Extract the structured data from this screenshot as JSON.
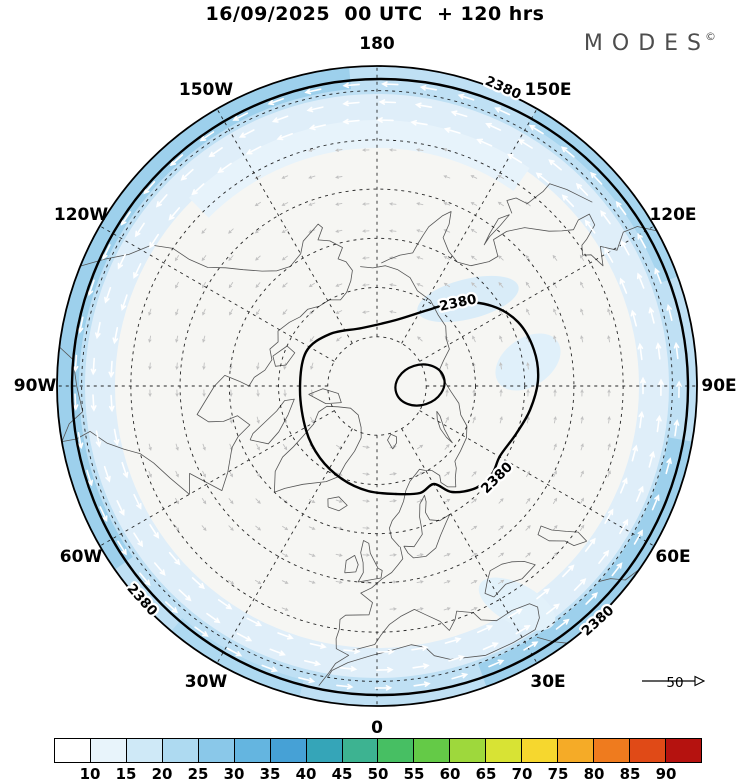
{
  "title": "16/09/2025  00 UTC  + 120 hrs",
  "brand": {
    "name": "MODES",
    "mark": "©"
  },
  "map": {
    "contour_level": "2380",
    "longitude_labels": [
      {
        "text": "180",
        "lon": 180
      },
      {
        "text": "150W",
        "lon": -150
      },
      {
        "text": "150E",
        "lon": 150
      },
      {
        "text": "120W",
        "lon": -120
      },
      {
        "text": "120E",
        "lon": 120
      },
      {
        "text": "90W",
        "lon": -90
      },
      {
        "text": "90E",
        "lon": 90
      },
      {
        "text": "60W",
        "lon": -60
      },
      {
        "text": "60E",
        "lon": 60
      },
      {
        "text": "30W",
        "lon": -30
      },
      {
        "text": "30E",
        "lon": 30
      },
      {
        "text": "0",
        "lon": 0
      }
    ]
  },
  "reference": {
    "label": "50"
  },
  "colorbar": {
    "ticks": [
      "10",
      "15",
      "20",
      "25",
      "30",
      "35",
      "40",
      "45",
      "50",
      "55",
      "60",
      "65",
      "70",
      "75",
      "80",
      "85",
      "90"
    ],
    "colors": [
      "#ffffff",
      "#e8f4fb",
      "#cfe9f7",
      "#aedaf1",
      "#8ac8e9",
      "#64b5e0",
      "#46a1d6",
      "#35a5b8",
      "#3db391",
      "#47bf63",
      "#64ca47",
      "#9ed83c",
      "#d8e334",
      "#f6d72e",
      "#f5ab27",
      "#ef7b1e",
      "#e04a17",
      "#b5120f"
    ]
  }
}
